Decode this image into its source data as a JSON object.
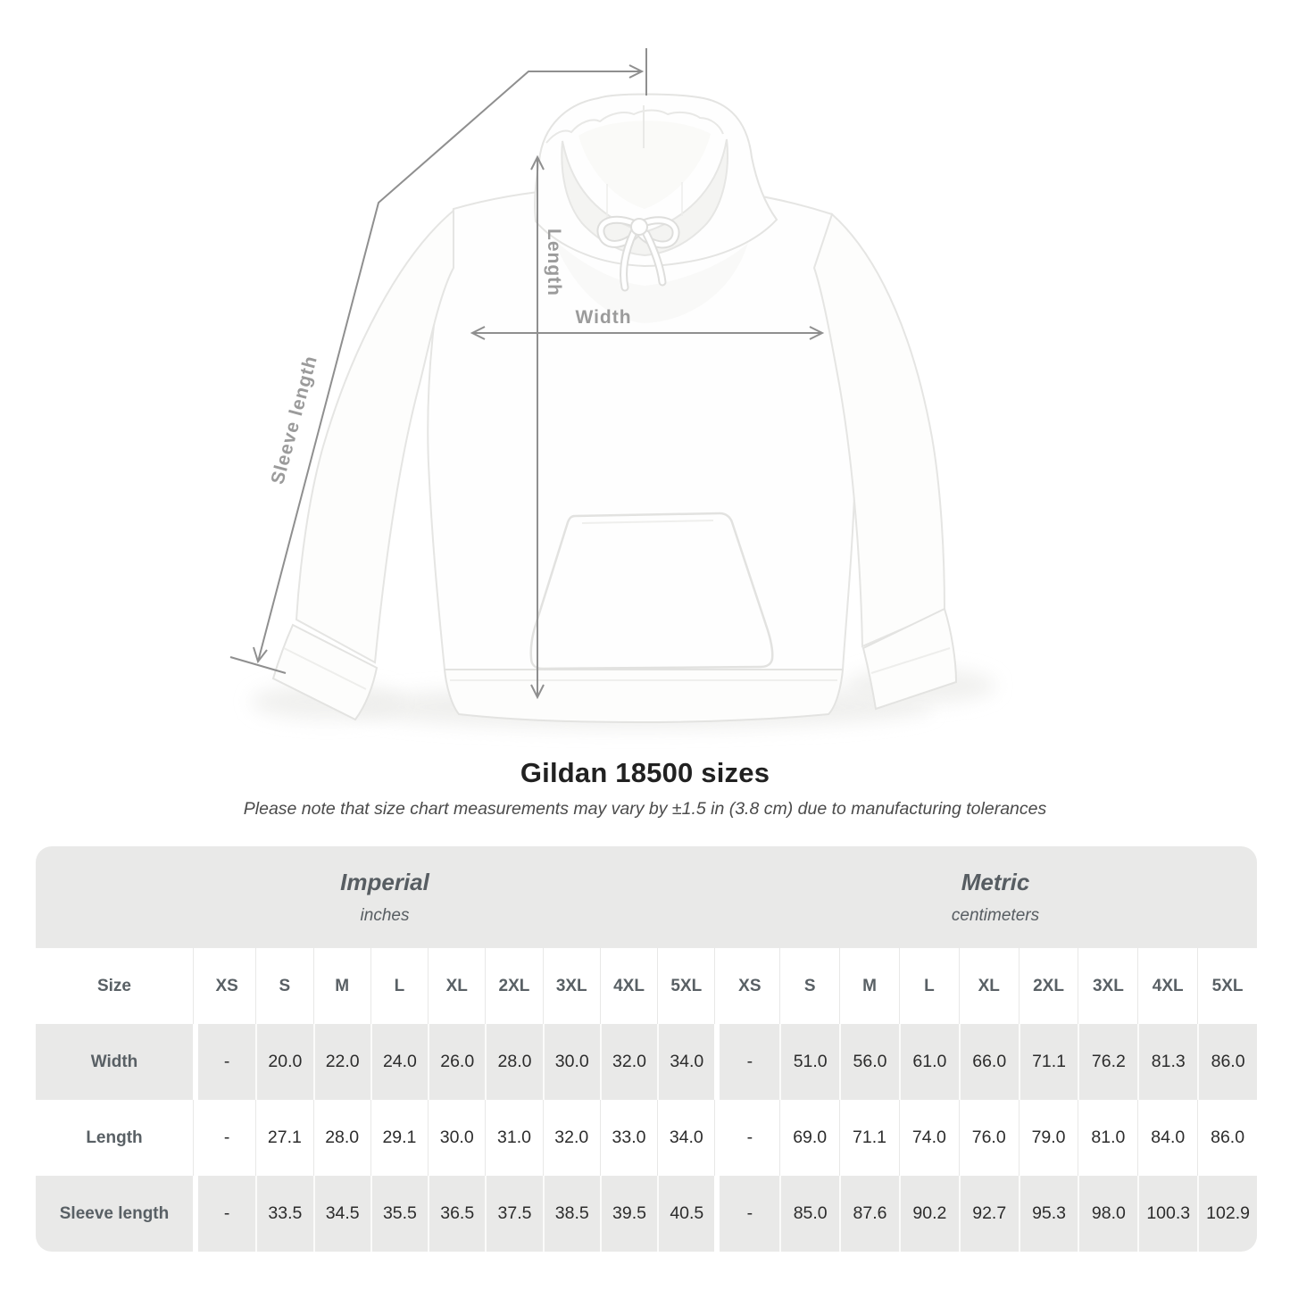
{
  "page": {
    "title": "Gildan 18500 sizes",
    "subtitle": "Please note that size chart measurements may vary by ±1.5 in (3.8 cm) due to manufacturing tolerances"
  },
  "diagram": {
    "illustration": "white pullover hoodie, front view",
    "length_label": "Length",
    "width_label": "Width",
    "sleeve_label": "Sleeve length"
  },
  "table": {
    "unit_groups": [
      {
        "name": "Imperial",
        "unit": "inches"
      },
      {
        "name": "Metric",
        "unit": "centimeters"
      }
    ],
    "size_label": "Size",
    "sizes": [
      "XS",
      "S",
      "M",
      "L",
      "XL",
      "2XL",
      "3XL",
      "4XL",
      "5XL"
    ],
    "rows": [
      {
        "label": "Width",
        "imperial": [
          "-",
          "20.0",
          "22.0",
          "24.0",
          "26.0",
          "28.0",
          "30.0",
          "32.0",
          "34.0"
        ],
        "metric": [
          "-",
          "51.0",
          "56.0",
          "61.0",
          "66.0",
          "71.1",
          "76.2",
          "81.3",
          "86.0"
        ]
      },
      {
        "label": "Length",
        "imperial": [
          "-",
          "27.1",
          "28.0",
          "29.1",
          "30.0",
          "31.0",
          "32.0",
          "33.0",
          "34.0"
        ],
        "metric": [
          "-",
          "69.0",
          "71.1",
          "74.0",
          "76.0",
          "79.0",
          "81.0",
          "84.0",
          "86.0"
        ]
      },
      {
        "label": "Sleeve length",
        "imperial": [
          "-",
          "33.5",
          "34.5",
          "35.5",
          "36.5",
          "37.5",
          "38.5",
          "39.5",
          "40.5"
        ],
        "metric": [
          "-",
          "85.0",
          "87.6",
          "90.2",
          "92.7",
          "95.3",
          "98.0",
          "100.3",
          "102.9"
        ]
      }
    ]
  },
  "colors": {
    "table_band_gray": "#e9e9e8",
    "row_label_text": "#596065",
    "value_text": "#2c2c2c",
    "measure_line": "#8f8f8f",
    "measure_label": "#9b9b9b"
  }
}
